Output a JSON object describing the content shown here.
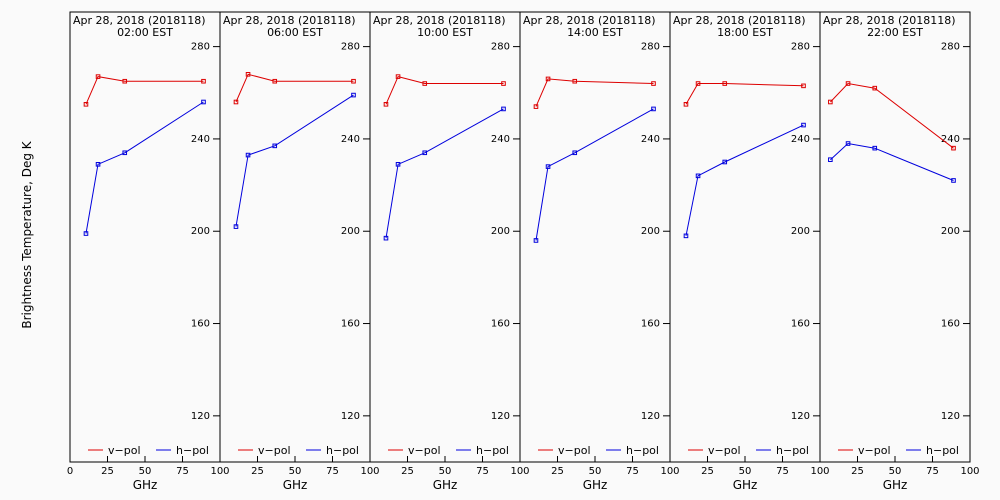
{
  "ylabel": "Brightness Temperature, Deg K",
  "xlabel": "GHz",
  "xlim": [
    0,
    100
  ],
  "ylim": [
    100,
    295
  ],
  "yticks": [
    120,
    160,
    200,
    240,
    280
  ],
  "xticks": [
    0,
    25,
    50,
    75,
    100
  ],
  "legend": {
    "vpol": "v−pol",
    "hpol": "h−pol",
    "placement": "bottom"
  },
  "colors": {
    "vpol": "#dd0000",
    "hpol": "#0000dd",
    "frame": "#000000",
    "background": "#fafafa"
  },
  "chart_data": [
    {
      "type": "line",
      "title": "Apr 28, 2018 (2018118)",
      "subtitle": "02:00 EST",
      "x": [
        10.65,
        18.7,
        36.5,
        89.0
      ],
      "series": [
        {
          "name": "v−pol",
          "values": [
            255,
            267,
            265,
            265
          ]
        },
        {
          "name": "h−pol",
          "values": [
            199,
            229,
            234,
            256
          ]
        }
      ]
    },
    {
      "type": "line",
      "title": "Apr 28, 2018 (2018118)",
      "subtitle": "06:00 EST",
      "x": [
        10.65,
        18.7,
        36.5,
        89.0
      ],
      "series": [
        {
          "name": "v−pol",
          "values": [
            256,
            268,
            265,
            265
          ]
        },
        {
          "name": "h−pol",
          "values": [
            202,
            233,
            237,
            259
          ]
        }
      ]
    },
    {
      "type": "line",
      "title": "Apr 28, 2018 (2018118)",
      "subtitle": "10:00 EST",
      "x": [
        10.65,
        18.7,
        36.5,
        89.0
      ],
      "series": [
        {
          "name": "v−pol",
          "values": [
            255,
            267,
            264,
            264
          ]
        },
        {
          "name": "h−pol",
          "values": [
            197,
            229,
            234,
            253
          ]
        }
      ]
    },
    {
      "type": "line",
      "title": "Apr 28, 2018 (2018118)",
      "subtitle": "14:00 EST",
      "x": [
        10.65,
        18.7,
        36.5,
        89.0
      ],
      "series": [
        {
          "name": "v−pol",
          "values": [
            254,
            266,
            265,
            264
          ]
        },
        {
          "name": "h−pol",
          "values": [
            196,
            228,
            234,
            253
          ]
        }
      ]
    },
    {
      "type": "line",
      "title": "Apr 28, 2018 (2018118)",
      "subtitle": "18:00 EST",
      "x": [
        10.65,
        18.7,
        36.5,
        89.0
      ],
      "series": [
        {
          "name": "v−pol",
          "values": [
            255,
            264,
            264,
            263
          ]
        },
        {
          "name": "h−pol",
          "values": [
            198,
            224,
            230,
            246
          ]
        }
      ]
    },
    {
      "type": "line",
      "title": "Apr 28, 2018 (2018118)",
      "subtitle": "22:00 EST",
      "x": [
        6.9,
        18.7,
        36.5,
        89.0
      ],
      "series": [
        {
          "name": "v−pol",
          "values": [
            256,
            264,
            262,
            236
          ]
        },
        {
          "name": "h−pol",
          "values": [
            231,
            238,
            236,
            222
          ]
        }
      ]
    }
  ]
}
